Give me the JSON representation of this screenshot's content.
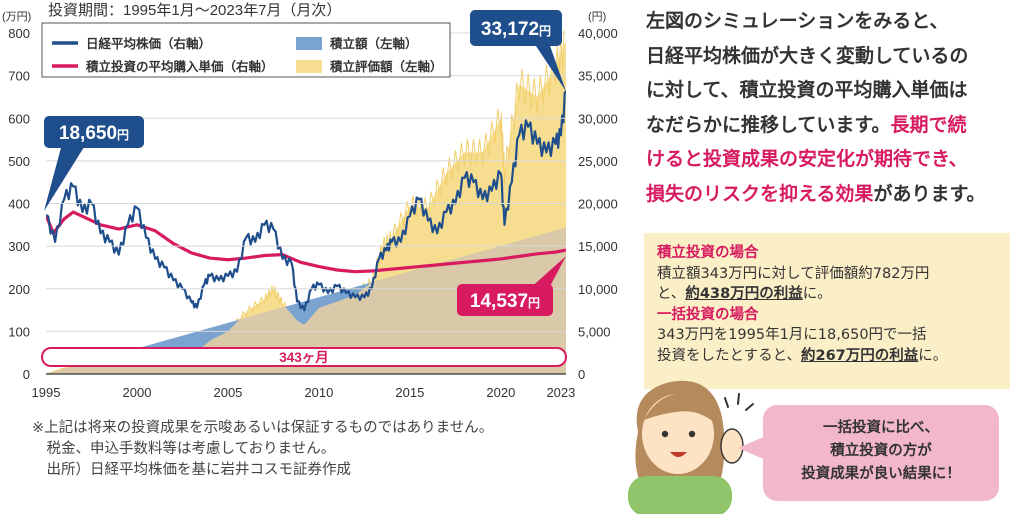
{
  "chart_data": {
    "type": "area+line",
    "title": "投資期間：1995年1月～2023年7月（月次）",
    "y_left_unit": "(万円)",
    "y_right_unit": "(円)",
    "ylim_left": [
      0,
      800
    ],
    "ylim_right": [
      0,
      40000
    ],
    "y_left_ticks": [
      "0",
      "100",
      "200",
      "300",
      "400",
      "500",
      "600",
      "700",
      "800"
    ],
    "y_right_ticks": [
      "0",
      "5,000",
      "10,000",
      "15,000",
      "20,000",
      "25,000",
      "30,000",
      "35,000",
      "40,000"
    ],
    "x_ticks": [
      "1995",
      "2000",
      "2005",
      "2010",
      "2015",
      "2020",
      "2023"
    ],
    "legend": [
      {
        "label": "日経平均株価（右軸）",
        "color": "#1f4e8c",
        "kind": "line"
      },
      {
        "label": "積立投資の平均購入単価（右軸）",
        "color": "#d81b60",
        "kind": "line"
      },
      {
        "label": "積立額（左軸）",
        "color": "#7aa3cf",
        "kind": "area"
      },
      {
        "label": "積立評価額（左軸）",
        "color": "#f7dd90",
        "kind": "area"
      }
    ],
    "series": [
      {
        "name": "日経平均株価（右軸）",
        "axis": "right",
        "x": [
          1995.0,
          1995.5,
          1996.0,
          1996.5,
          1997.0,
          1997.5,
          1998.0,
          1998.5,
          1999.0,
          1999.5,
          2000.0,
          2000.5,
          2001.0,
          2001.5,
          2002.0,
          2002.5,
          2003.0,
          2003.3,
          2003.7,
          2004.0,
          2004.5,
          2005.0,
          2005.5,
          2006.0,
          2006.5,
          2007.0,
          2007.5,
          2008.0,
          2008.5,
          2008.8,
          2009.2,
          2009.6,
          2010.0,
          2010.5,
          2011.0,
          2011.5,
          2012.0,
          2012.5,
          2012.9,
          2013.3,
          2013.7,
          2014.0,
          2014.5,
          2015.0,
          2015.5,
          2016.0,
          2016.5,
          2017.0,
          2017.5,
          2018.0,
          2018.5,
          2019.0,
          2019.5,
          2020.0,
          2020.2,
          2020.6,
          2021.0,
          2021.5,
          2022.0,
          2022.5,
          2023.0,
          2023.3,
          2023.58
        ],
        "values": [
          18650,
          15500,
          20500,
          22000,
          19000,
          20000,
          16500,
          15500,
          14000,
          17500,
          19500,
          16000,
          13500,
          12500,
          11000,
          10000,
          8400,
          7800,
          10500,
          11500,
          11000,
          11500,
          12000,
          16000,
          15500,
          17500,
          17000,
          13500,
          13000,
          8500,
          7500,
          10000,
          10500,
          9500,
          10300,
          9500,
          9000,
          9000,
          10000,
          13500,
          14500,
          15500,
          15500,
          18500,
          20500,
          18000,
          16500,
          19000,
          20000,
          23000,
          22500,
          20500,
          21500,
          23500,
          17500,
          22500,
          28000,
          29000,
          27000,
          26000,
          27000,
          28000,
          33172
        ]
      },
      {
        "name": "積立投資の平均購入単価（右軸）",
        "axis": "right",
        "x": [
          1995.0,
          1995.4,
          1996.0,
          1996.5,
          1997.0,
          1998.0,
          1999.0,
          2000.0,
          2001.0,
          2002.0,
          2003.0,
          2004.0,
          2005.0,
          2006.0,
          2007.0,
          2008.0,
          2009.0,
          2010.0,
          2011.0,
          2012.0,
          2013.0,
          2014.0,
          2015.0,
          2016.0,
          2017.0,
          2018.0,
          2019.0,
          2020.0,
          2021.0,
          2022.0,
          2023.0,
          2023.58
        ],
        "values": [
          18650,
          16500,
          18200,
          19000,
          18500,
          17500,
          17000,
          17500,
          16800,
          15300,
          14200,
          13600,
          13400,
          13600,
          13900,
          14000,
          13100,
          12600,
          12200,
          12000,
          12100,
          12300,
          12500,
          12700,
          12900,
          13100,
          13300,
          13500,
          13800,
          14100,
          14300,
          14537
        ]
      },
      {
        "name": "積立額（左軸）",
        "axis": "left",
        "x": [
          1995.0,
          2023.58
        ],
        "values": [
          0,
          343
        ]
      },
      {
        "name": "積立評価額（左軸）",
        "axis": "left",
        "x": [
          1995.0,
          1996.0,
          1997.0,
          1998.0,
          1999.0,
          2000.0,
          2001.0,
          2002.0,
          2003.0,
          2003.3,
          2004.0,
          2005.0,
          2006.0,
          2007.0,
          2007.5,
          2008.0,
          2008.8,
          2009.2,
          2010.0,
          2011.0,
          2012.0,
          2012.9,
          2013.5,
          2014.0,
          2015.0,
          2016.0,
          2017.0,
          2018.0,
          2019.0,
          2020.0,
          2020.2,
          2021.0,
          2022.0,
          2023.0,
          2023.58
        ],
        "values": [
          0,
          14,
          26,
          30,
          36,
          55,
          60,
          62,
          56,
          52,
          78,
          100,
          145,
          175,
          200,
          165,
          125,
          115,
          155,
          170,
          185,
          215,
          300,
          320,
          395,
          390,
          470,
          520,
          520,
          600,
          470,
          680,
          650,
          720,
          782
        ]
      }
    ],
    "annotations": [
      {
        "text": "18,650",
        "unit": "円",
        "x": 1995.0,
        "value": 18650,
        "color": "#1f4e8c"
      },
      {
        "text": "33,172",
        "unit": "円",
        "x": 2023.58,
        "value": 33172,
        "color": "#1f4e8c"
      },
      {
        "text": "14,537",
        "unit": "円",
        "x": 2023.58,
        "value": 14537,
        "color": "#d81b60"
      },
      {
        "text": "343ヶ月",
        "color": "#d81b60"
      }
    ]
  },
  "summary_text": {
    "line1": "左図のシミュレーションをみると、",
    "line2": "日経平均株価が大きく変動しているの",
    "line3": "に対して、積立投資の平均購入単価は",
    "line4_plain": "なだらかに推移しています。",
    "line4_hl": "長期で続",
    "line5_hl": "けると投資成果の安定化が期待でき、",
    "line6_hl": "損失のリスクを抑える効果",
    "line6_plain": "があります。"
  },
  "info_box": {
    "tsumitate_head": "積立投資の場合",
    "tsumitate_l1": "積立額343万円に対して評価額約782万円",
    "tsumitate_l2a": "と、",
    "tsumitate_l2b": "約438万円の利益",
    "tsumitate_l2c": "に。",
    "ikkatsu_head": "一括投資の場合",
    "ikkatsu_l1": "343万円を1995年1月に18,650円で一括",
    "ikkatsu_l2a": "投資をしたとすると、",
    "ikkatsu_l2b": "約267万円の利益",
    "ikkatsu_l2c": "に。"
  },
  "notes": {
    "n1": "※上記は将来の投資成果を示唆あるいは保証するものではありません。",
    "n2": "　税金、申込手数料等は考慮しておりません。",
    "n3": "　出所）日経平均株価を基に岩井コスモ証券作成"
  },
  "bubble": {
    "l1": "一括投資に比べ、",
    "l2": "積立投資の方が",
    "l3": "投資成果が良い結果に！"
  },
  "colors": {
    "nikkei": "#1f4e8c",
    "avg_price": "#d81b60",
    "contribution": "#7aa3cf",
    "valuation": "#f7dd90",
    "overlap": "#d9c9a8",
    "box_bg": "#fbefc8",
    "bubble_bg": "#f3b7cc"
  }
}
